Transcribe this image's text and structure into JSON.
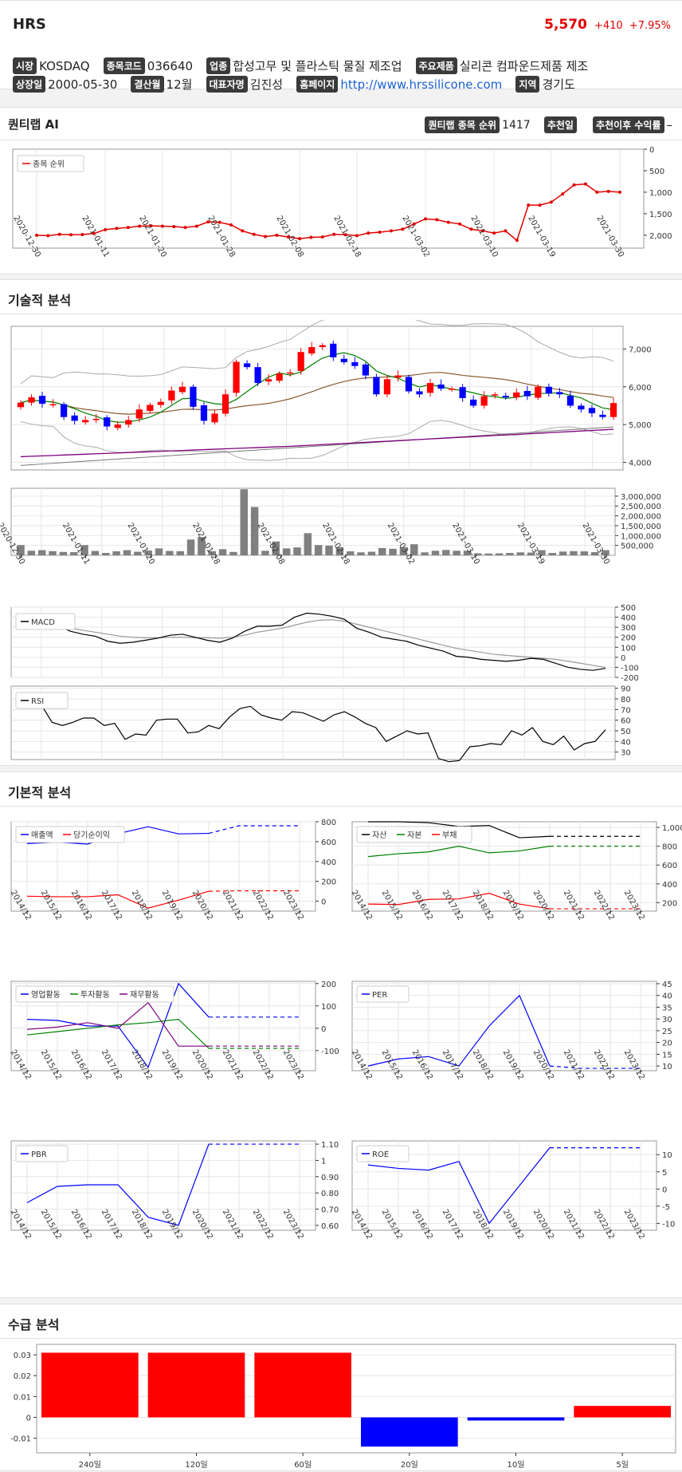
{
  "stock": {
    "name": "HRS",
    "price": "5,570",
    "change": "+410",
    "change_pct": "+7.95%"
  },
  "info": [
    {
      "label": "시장",
      "value": "KOSDAQ"
    },
    {
      "label": "종목코드",
      "value": "036640"
    },
    {
      "label": "업종",
      "value": "합성고무 및 플라스틱 물질 제조업"
    },
    {
      "label": "주요제품",
      "value": "실리콘 컴파운드제품 제조"
    },
    {
      "label": "상장일",
      "value": "2000-05-30"
    },
    {
      "label": "결산월",
      "value": "12월"
    },
    {
      "label": "대표자명",
      "value": "김진성"
    },
    {
      "label": "홈페이지",
      "value": "http://www.hrssilicone.com"
    },
    {
      "label": "지역",
      "value": "경기도"
    }
  ],
  "quantilab": {
    "title": "퀀티랩 AI",
    "rank_label": "퀀티랩 종목 순위",
    "rank_value": "1417",
    "rec_date_label": "추천일",
    "rec_return_label": "추천이후 수익률",
    "rec_return_value": "–"
  },
  "sections": {
    "technical": "기술적 분석",
    "fundamental": "기본적 분석",
    "supply": "수급 분석"
  },
  "colors": {
    "up": "#ff0000",
    "down": "#0000ff",
    "accent": "#e00000"
  },
  "chart_data": [
    {
      "id": "rank",
      "type": "line",
      "legend": [
        "종목 순위"
      ],
      "y_ticks": [
        "0",
        "500",
        "1,000",
        "1,500",
        "2,000"
      ],
      "ylim": [
        2300,
        0
      ],
      "x_ticks": [
        "2020-12-30",
        "2021-01-11",
        "2021-01-20",
        "2021-01-28",
        "2021-02-08",
        "2021-02-18",
        "2021-03-02",
        "2021-03-10",
        "2021-03-19",
        "2021-03-30"
      ],
      "values": [
        2000,
        2010,
        1980,
        1990,
        1985,
        1960,
        1870,
        1840,
        1820,
        1790,
        1780,
        1790,
        1800,
        1820,
        1790,
        1690,
        1700,
        1760,
        1900,
        1980,
        2030,
        2000,
        2040,
        2080,
        2050,
        2040,
        1980,
        1990,
        2010,
        1950,
        1930,
        1900,
        1860,
        1740,
        1620,
        1640,
        1700,
        1740,
        1860,
        1900,
        1950,
        1900,
        2120,
        1300,
        1300,
        1230,
        1040,
        830,
        810,
        1000,
        980,
        1000
      ]
    },
    {
      "id": "price",
      "type": "candlestick",
      "y_ticks": [
        "4,000",
        "5,000",
        "6,000",
        "7,000"
      ],
      "ylim": [
        3800,
        7600
      ],
      "x_ticks": [
        "2020-12-30",
        "2021-01-11",
        "2021-01-20",
        "2021-01-28",
        "2021-02-08",
        "2021-02-18",
        "2021-03-02",
        "2021-03-10",
        "2021-03-19",
        "2021-03-30"
      ],
      "close": [
        5580,
        5720,
        5550,
        5540,
        5200,
        5100,
        5120,
        5150,
        4950,
        5000,
        5120,
        5400,
        5520,
        5600,
        5900,
        6000,
        5470,
        5100,
        5290,
        5800,
        6660,
        6520,
        6100,
        6200,
        6350,
        6380,
        6920,
        7050,
        7100,
        6780,
        6650,
        6550,
        6300,
        5800,
        6200,
        6300,
        5880,
        5800,
        6100,
        5950,
        5950,
        5700,
        5500,
        5750,
        5800,
        5720,
        5850,
        5750,
        6000,
        5820,
        5800,
        5500,
        5400,
        5300,
        5200,
        5570
      ]
    },
    {
      "id": "volume",
      "type": "bar",
      "y_ticks": [
        "500,000",
        "1,000,000",
        "1,500,000",
        "2,000,000",
        "2,500,000",
        "3,000,000"
      ],
      "ylim": [
        0,
        3400000
      ],
      "values": [
        520000,
        230000,
        260000,
        210000,
        170000,
        160000,
        520000,
        220000,
        120000,
        200000,
        260000,
        180000,
        240000,
        350000,
        220000,
        210000,
        800000,
        930000,
        210000,
        310000,
        170000,
        3350000,
        2450000,
        230000,
        700000,
        350000,
        400000,
        1120000,
        520000,
        490000,
        400000,
        200000,
        150000,
        180000,
        370000,
        330000,
        400000,
        560000,
        150000,
        230000,
        270000,
        230000,
        230000,
        100000,
        90000,
        100000,
        120000,
        150000,
        140000,
        260000,
        120000,
        190000,
        210000,
        200000,
        160000,
        260000
      ]
    },
    {
      "id": "macd",
      "type": "line",
      "legend": [
        "MACD"
      ],
      "y_ticks": [
        "500",
        "400",
        "300",
        "200",
        "100",
        "0",
        "-100",
        "-200"
      ],
      "ylim": [
        -200,
        500
      ],
      "macd": [
        330,
        345,
        330,
        310,
        260,
        230,
        210,
        160,
        140,
        150,
        170,
        190,
        220,
        230,
        200,
        170,
        150,
        190,
        260,
        310,
        310,
        320,
        400,
        440,
        430,
        410,
        380,
        290,
        250,
        200,
        180,
        160,
        120,
        90,
        60,
        10,
        0,
        -20,
        -30,
        -40,
        -30,
        -10,
        -20,
        -60,
        -100,
        -120,
        -130,
        -110
      ],
      "signal": [
        280,
        290,
        300,
        300,
        290,
        270,
        250,
        230,
        210,
        200,
        195,
        195,
        200,
        200,
        195,
        195,
        190,
        200,
        220,
        250,
        270,
        290,
        320,
        350,
        370,
        375,
        360,
        330,
        300,
        270,
        240,
        210,
        180,
        150,
        120,
        90,
        70,
        50,
        30,
        20,
        10,
        0,
        -10,
        -20,
        -40,
        -60,
        -80,
        -100
      ]
    },
    {
      "id": "rsi",
      "type": "line",
      "legend": [
        "RSI"
      ],
      "y_ticks": [
        "90",
        "80",
        "70",
        "60",
        "50",
        "40",
        "30"
      ],
      "ylim": [
        23,
        92
      ],
      "values": [
        80,
        76,
        74,
        58,
        55,
        58,
        62,
        62,
        55,
        57,
        42,
        47,
        46,
        60,
        61,
        61,
        48,
        49,
        55,
        52,
        63,
        71,
        73,
        65,
        62,
        60,
        68,
        67,
        63,
        59,
        65,
        68,
        63,
        57,
        53,
        40,
        45,
        50,
        47,
        48,
        24,
        21,
        22,
        35,
        36,
        38,
        37,
        50,
        46,
        53,
        40,
        37,
        45,
        32,
        38,
        40,
        51
      ]
    },
    {
      "id": "sales",
      "type": "line",
      "legend": [
        "매출액",
        "당기순이익"
      ],
      "categories": [
        "2014/12",
        "2015/12",
        "2016/12",
        "2017/12",
        "2018/12",
        "2019/12",
        "2020/12",
        "2021/12",
        "2022/12",
        "2023/12"
      ],
      "y_ticks": [
        "800",
        "600",
        "400",
        "200",
        "0"
      ],
      "ylim": [
        -100,
        800
      ],
      "series": [
        {
          "name": "매출액",
          "values": [
            580,
            595,
            575,
            680,
            750,
            678,
            683,
            760,
            760,
            760
          ]
        },
        {
          "name": "당기순이익",
          "values": [
            50,
            45,
            45,
            65,
            -70,
            10,
            100,
            105,
            105,
            105
          ]
        }
      ]
    },
    {
      "id": "assets",
      "type": "line",
      "legend": [
        "자산",
        "자본",
        "부채"
      ],
      "categories": [
        "2014/12",
        "2015/12",
        "2016/12",
        "2017/12",
        "2018/12",
        "2019/12",
        "2020/12",
        "2021/12",
        "2022/12",
        "2023/12"
      ],
      "y_ticks": [
        "1,000",
        "800",
        "600",
        "400",
        "200"
      ],
      "ylim": [
        110,
        1060
      ],
      "series": [
        {
          "name": "자산",
          "values": [
            1100,
            1080,
            1050,
            1010,
            1020,
            890,
            905,
            905,
            905,
            905
          ]
        },
        {
          "name": "자본",
          "values": [
            690,
            720,
            740,
            800,
            730,
            750,
            800,
            800,
            800,
            800
          ]
        },
        {
          "name": "부채",
          "values": [
            185,
            180,
            235,
            240,
            300,
            185,
            135,
            135,
            135,
            135
          ]
        }
      ]
    },
    {
      "id": "cashflow",
      "type": "line",
      "legend": [
        "영업활동",
        "투자활동",
        "재무활동"
      ],
      "categories": [
        "2014/12",
        "2015/12",
        "2016/12",
        "2017/12",
        "2018/12",
        "2019/12",
        "2020/12",
        "2021/12",
        "2022/12",
        "2023/12"
      ],
      "y_ticks": [
        "200",
        "100",
        "0",
        "-100"
      ],
      "ylim": [
        -190,
        210
      ],
      "series": [
        {
          "name": "영업활동",
          "values": [
            40,
            35,
            10,
            10,
            -175,
            200,
            50,
            50,
            50,
            50
          ]
        },
        {
          "name": "투자활동",
          "values": [
            -30,
            -15,
            0,
            15,
            25,
            40,
            -90,
            -90,
            -90,
            -90
          ]
        },
        {
          "name": "재무활동",
          "values": [
            -5,
            5,
            25,
            0,
            115,
            -80,
            -80,
            -80,
            -80,
            -80
          ]
        }
      ]
    },
    {
      "id": "per",
      "type": "line",
      "legend": [
        "PER"
      ],
      "categories": [
        "2014/12",
        "2015/12",
        "2016/12",
        "2017/12",
        "2018/12",
        "2019/12",
        "2020/12",
        "2021/12",
        "2022/12",
        "2023/12"
      ],
      "y_ticks": [
        "45",
        "40",
        "35",
        "30",
        "25",
        "20",
        "15",
        "10"
      ],
      "ylim": [
        8,
        46
      ],
      "series": [
        {
          "name": "PER",
          "values": [
            10,
            13,
            14,
            10,
            27,
            40,
            10,
            9,
            9,
            9
          ]
        }
      ]
    },
    {
      "id": "pbr",
      "type": "line",
      "legend": [
        "PBR"
      ],
      "categories": [
        "2014/12",
        "2015/12",
        "2016/12",
        "2017/12",
        "2018/12",
        "2019/12",
        "2020/12",
        "2021/12",
        "2022/12",
        "2023/12"
      ],
      "y_ticks": [
        "1.10",
        "1",
        "0.90",
        "0.80",
        "0.70",
        "0.60"
      ],
      "ylim": [
        0.57,
        1.12
      ],
      "series": [
        {
          "name": "PBR",
          "values": [
            0.74,
            0.84,
            0.85,
            0.85,
            0.65,
            0.6,
            1.1,
            1.1,
            1.1,
            1.1
          ]
        }
      ]
    },
    {
      "id": "roe",
      "type": "line",
      "legend": [
        "ROE"
      ],
      "categories": [
        "2014/12",
        "2015/12",
        "2016/12",
        "2017/12",
        "2018/12",
        "2019/12",
        "2020/12",
        "2021/12",
        "2022/12",
        "2023/12"
      ],
      "y_ticks": [
        "10",
        "5",
        "0",
        "-5",
        "-10"
      ],
      "ylim": [
        -12,
        14
      ],
      "series": [
        {
          "name": "ROE",
          "values": [
            7,
            6,
            5.5,
            8,
            -10,
            1,
            12,
            12,
            12,
            12
          ]
        }
      ]
    },
    {
      "id": "supply",
      "type": "bar",
      "categories": [
        "240일",
        "120일",
        "60일",
        "20일",
        "10일",
        "5일"
      ],
      "y_ticks": [
        "0.03",
        "0.02",
        "0.01",
        "0",
        "-0.01"
      ],
      "ylim": [
        -0.017,
        0.035
      ],
      "values": [
        0.031,
        0.031,
        0.031,
        -0.014,
        -0.0015,
        0.0055
      ]
    }
  ]
}
